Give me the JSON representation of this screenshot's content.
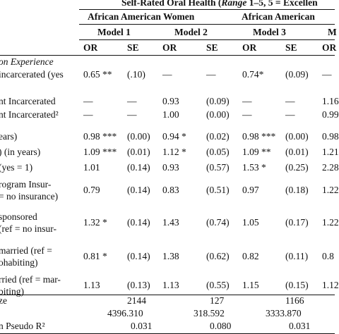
{
  "header": {
    "title_pre": "Self-Rated Oral Health (",
    "title_range": "Range",
    "title_post": " 1–5, 5 = Excellen",
    "group_women": "African American Women",
    "group_men": "African American",
    "models": [
      "Model 1",
      "Model 2",
      "Model 3",
      "M"
    ],
    "stat_or": "OR",
    "stat_se": "SE",
    "stat_or_cut": "OR"
  },
  "section_label": "on Experience",
  "rows": [
    {
      "label": [
        "incarcerated (yes"
      ],
      "c1": "0.65 **",
      "c2": "(.10)",
      "c3": "—",
      "c4": "—",
      "c5": "0.74*",
      "c6": "(0.09)",
      "c7": "—"
    },
    {
      "label": [
        "nt Incarcerated"
      ],
      "c1": "—",
      "c2": "—",
      "c3": "0.93",
      "c4": "(0.09)",
      "c5": "—",
      "c6": "—",
      "c7": "1.16"
    },
    {
      "label": [
        "nt Incarcerated²"
      ],
      "c1": "—",
      "c2": "—",
      "c3": "1.00",
      "c4": "(0.00)",
      "c5": "—",
      "c6": "—",
      "c7": "0.99"
    },
    {
      "label": [
        "ears)"
      ],
      "c1": "0.98 ***",
      "c2": "(0.00)",
      "c3": "0.94 *",
      "c4": "(0.02)",
      "c5": "0.98 ***",
      "c6": "(0.00)",
      "c7": "0.98"
    },
    {
      "label": [
        ") (in years)"
      ],
      "c1": "1.09 ***",
      "c2": "(0.01)",
      "c3": "1.12 *",
      "c4": "(0.05)",
      "c5": "1.09 **",
      "c6": "(0.01)",
      "c7": "1.21"
    },
    {
      "label": [
        "(yes = 1)"
      ],
      "c1": "1.01",
      "c2": "(0.14)",
      "c3": "0.93",
      "c4": "(0.57)",
      "c5": "1.53 *",
      "c6": "(0.25)",
      "c7": "2.28"
    },
    {
      "label": [
        "rogram Insur-",
        "= no insurance)"
      ],
      "c1": "0.79",
      "c2": "(0.14)",
      "c3": "0.83",
      "c4": "(0.51)",
      "c5": "0.97",
      "c6": "(0.18)",
      "c7": "1.22"
    },
    {
      "label": [
        "sponsored",
        "(ref = no insur-"
      ],
      "c1": "1.32 *",
      "c2": "(0.14)",
      "c3": "1.43",
      "c4": "(0.74)",
      "c5": "1.05",
      "c6": "(0.17)",
      "c7": "1.22"
    },
    {
      "label": [
        "married (ref =",
        "ohabiting)"
      ],
      "c1": "0.81 *",
      "c2": "(0.14)",
      "c3": "1.38",
      "c4": "(0.62)",
      "c5": "0.82",
      "c6": "(0.11)",
      "c7": "0.8"
    },
    {
      "label": [
        "rried (ref = mar-",
        "biting)"
      ],
      "c1": "1.13",
      "c2": "(0.13)",
      "c3": "1.13",
      "c4": "(0.55)",
      "c5": "1.15",
      "c6": "(0.15)",
      "c7": "1.12"
    }
  ],
  "footer": {
    "n_label": "ze",
    "n_values": [
      "2144",
      "127",
      "1166"
    ],
    "ll_values": [
      "4396.310",
      "318.592",
      "3333.870"
    ],
    "pseudo_label": "n Pseudo R²",
    "pseudo_values": [
      "0.031",
      "0.080",
      "0.031"
    ]
  }
}
